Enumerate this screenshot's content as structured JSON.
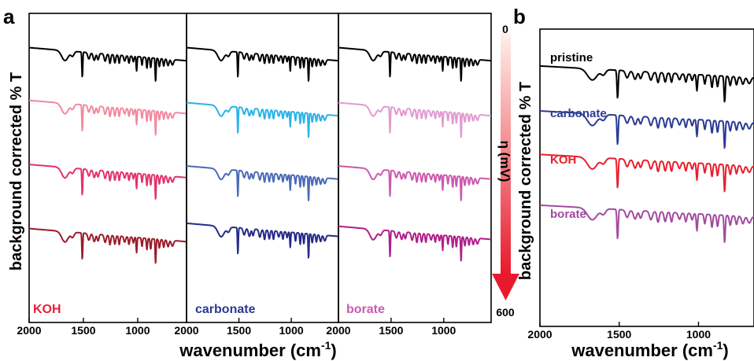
{
  "panel_labels": {
    "a": "a",
    "b": "b"
  },
  "ylabel": "background corrected % T",
  "xlabel": "wavenumber (cm",
  "xlabel_sup": "-1",
  "xlabel_close": ")",
  "colorbar": {
    "top": "0",
    "bottom": "600",
    "label": "η (mV)",
    "color_start": "#fff0ea",
    "color_end": "#e8192c"
  },
  "chart_data": [
    {
      "type": "line",
      "panel": "a",
      "subplot": "KOH",
      "corner_label": "KOH",
      "corner_label_color": "#e8203a",
      "xlim": [
        2000,
        550
      ],
      "xticks": [
        "2000",
        "1500",
        "1000"
      ],
      "series": [
        {
          "color": "#000000",
          "offset": 0
        },
        {
          "color": "#f3899f",
          "offset": 1
        },
        {
          "color": "#e2346b",
          "offset": 2
        },
        {
          "color": "#9b1c2b",
          "offset": 3
        }
      ]
    },
    {
      "type": "line",
      "panel": "a",
      "subplot": "carbonate",
      "corner_label": "carbonate",
      "corner_label_color": "#2b3a93",
      "xlim": [
        2000,
        550
      ],
      "xticks": [
        "2000",
        "1500",
        "1000"
      ],
      "series": [
        {
          "color": "#000000",
          "offset": 0
        },
        {
          "color": "#2ab3e8",
          "offset": 1
        },
        {
          "color": "#4a6ab8",
          "offset": 2
        },
        {
          "color": "#262a8a",
          "offset": 3
        }
      ]
    },
    {
      "type": "line",
      "panel": "a",
      "subplot": "borate",
      "corner_label": "borate",
      "corner_label_color": "#c95bb0",
      "xlim": [
        2000,
        550
      ],
      "xticks": [
        "2000",
        "1500",
        "1000"
      ],
      "series": [
        {
          "color": "#000000",
          "offset": 0
        },
        {
          "color": "#e29ad0",
          "offset": 1
        },
        {
          "color": "#cc5aae",
          "offset": 2
        },
        {
          "color": "#b01e8c",
          "offset": 3
        }
      ]
    },
    {
      "type": "line",
      "panel": "b",
      "xlim": [
        2000,
        650
      ],
      "xticks": [
        "2000",
        "1500",
        "1000"
      ],
      "series": [
        {
          "name": "pristine",
          "color": "#000000",
          "offset": 0
        },
        {
          "name": "carbonate",
          "color": "#2b3a93",
          "offset": 1
        },
        {
          "name": "KOH",
          "color": "#e8202c",
          "offset": 2
        },
        {
          "name": "borate",
          "color": "#a24aa0",
          "offset": 3
        }
      ]
    }
  ]
}
